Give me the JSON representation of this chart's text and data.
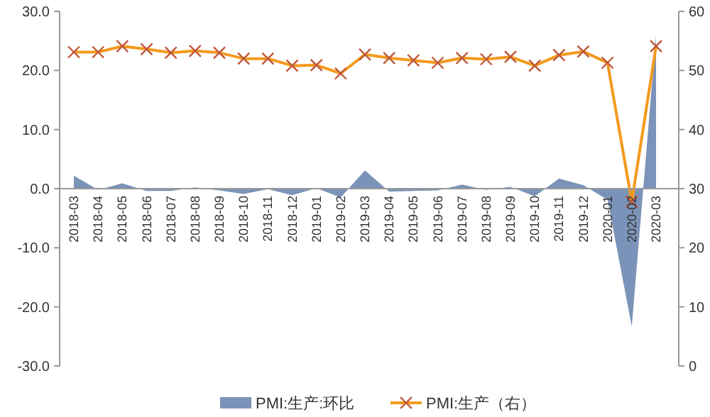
{
  "chart_data": {
    "type": "area",
    "categories": [
      "2018-03",
      "2018-04",
      "2018-05",
      "2018-06",
      "2018-07",
      "2018-08",
      "2018-09",
      "2018-10",
      "2018-11",
      "2018-12",
      "2019-01",
      "2019-02",
      "2019-03",
      "2019-04",
      "2019-05",
      "2019-06",
      "2019-07",
      "2019-08",
      "2019-09",
      "2019-10",
      "2019-11",
      "2019-12",
      "2020-01",
      "2020-02",
      "2020-03"
    ],
    "series": [
      {
        "name": "PMI:生产:环比",
        "color": "#7b93b8",
        "values": [
          2.2,
          -0.2,
          0.9,
          -0.4,
          -0.4,
          0.2,
          -0.3,
          -0.9,
          -0.1,
          -1.1,
          0.1,
          -1.5,
          3.1,
          -0.5,
          -0.4,
          -0.3,
          0.7,
          -0.2,
          0.3,
          -1.3,
          1.7,
          0.6,
          -1.9,
          -23.3,
          26.0
        ]
      },
      {
        "name": "PMI:生产（右）",
        "type": "line",
        "axis": "y2",
        "color": "#f39a1e",
        "marker": "cross",
        "values": [
          53.1,
          53.1,
          54.1,
          53.6,
          53.0,
          53.3,
          53.0,
          52.0,
          52.0,
          50.8,
          50.9,
          49.5,
          52.7,
          52.1,
          51.7,
          51.3,
          52.1,
          51.9,
          52.3,
          50.8,
          52.6,
          53.2,
          51.3,
          27.8,
          54.1
        ]
      }
    ],
    "ylim": [
      -30,
      30
    ],
    "yticks": [
      {
        "value": -30,
        "label": "-30.0"
      },
      {
        "value": -20,
        "label": "-20.0"
      },
      {
        "value": -10,
        "label": "-10.0"
      },
      {
        "value": 0,
        "label": "0.0"
      },
      {
        "value": 10,
        "label": "10.0"
      },
      {
        "value": 20,
        "label": "20.0"
      },
      {
        "value": 30,
        "label": "30.0"
      }
    ],
    "y2lim": [
      0,
      60
    ],
    "y2ticks": [
      0,
      10,
      20,
      30,
      40,
      50,
      60
    ],
    "legend": "bottom",
    "grid": false
  }
}
